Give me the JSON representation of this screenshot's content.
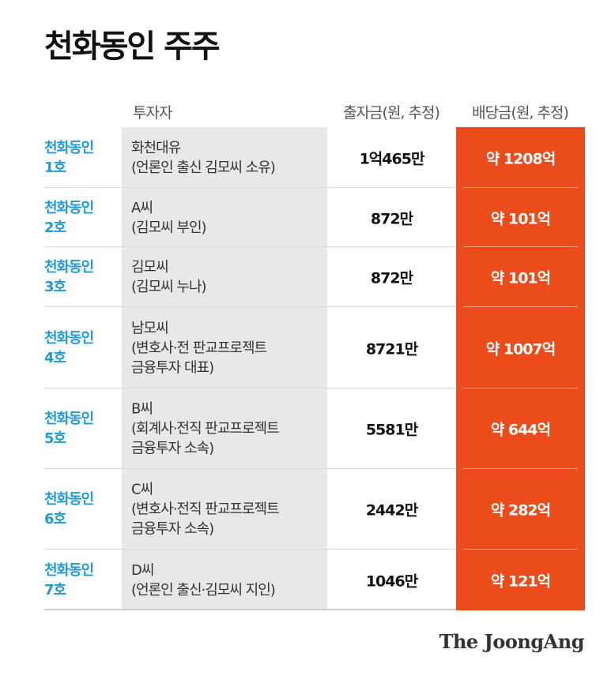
{
  "title": "천화동인 주주",
  "headers": {
    "investor": "투자자",
    "investment": "출자금(원, 추정)",
    "dividend": "배당금(원, 추정)"
  },
  "rows": [
    {
      "name_line1": "천화동인",
      "name_line2": "1호",
      "investor_lines": [
        "화천대유",
        "(언론인 출신 김모씨 소유)",
        ""
      ],
      "investment": "1억465만",
      "dividend": "약 1208억"
    },
    {
      "name_line1": "천화동인",
      "name_line2": "2호",
      "investor_lines": [
        "A씨",
        "(김모씨 부인)",
        ""
      ],
      "investment": "872만",
      "dividend": "약 101억"
    },
    {
      "name_line1": "천화동인",
      "name_line2": "3호",
      "investor_lines": [
        "김모씨",
        "(김모씨 누나)",
        ""
      ],
      "investment": "872만",
      "dividend": "약 101억"
    },
    {
      "name_line1": "천화동인",
      "name_line2": "4호",
      "investor_lines": [
        "남모씨",
        "(변호사·전 판교프로젝트",
        "금융투자 대표)"
      ],
      "investment": "8721만",
      "dividend": "약 1007억"
    },
    {
      "name_line1": "천화동인",
      "name_line2": "5호",
      "investor_lines": [
        "B씨",
        "(회계사·전직 판교프로젝트",
        "금융투자 소속)"
      ],
      "investment": "5581만",
      "dividend": "약 644억"
    },
    {
      "name_line1": "천화동인",
      "name_line2": "6호",
      "investor_lines": [
        "C씨",
        "(변호사·전직 판교프로젝트",
        "금융투자 소속)"
      ],
      "investment": "2442만",
      "dividend": "약 282억"
    },
    {
      "name_line1": "천화동인",
      "name_line2": "7호",
      "investor_lines": [
        "D씨",
        "(언론인 출신·김모씨 지인)",
        ""
      ],
      "investment": "1046만",
      "dividend": "약 121억"
    }
  ],
  "logo": "The JoongAng",
  "colors": {
    "accent_orange": "#ec4b1c",
    "name_blue": "#1f9bd6",
    "gray_column": "#e6e8ea"
  }
}
